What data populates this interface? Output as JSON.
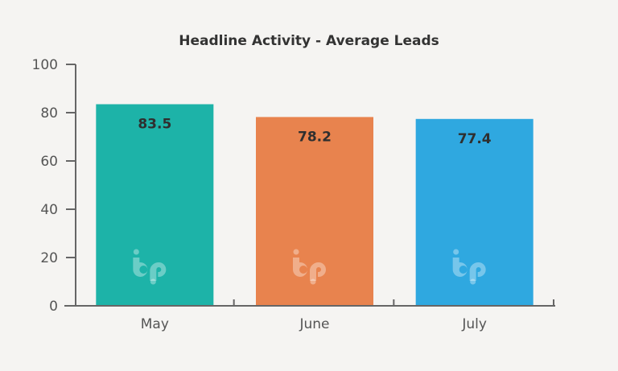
{
  "chart_data": {
    "type": "bar",
    "title": "Headline Activity - Average Leads",
    "xlabel": "",
    "ylabel": "",
    "categories": [
      "May",
      "June",
      "July"
    ],
    "values": [
      83.5,
      78.2,
      77.4
    ],
    "value_labels": [
      "83.5",
      "78.2",
      "77.4"
    ],
    "ylim": [
      0,
      100
    ],
    "yticks": [
      0,
      20,
      40,
      60,
      80,
      100
    ],
    "ytick_labels": [
      "0",
      "20",
      "40",
      "60",
      "80",
      "100"
    ],
    "bar_colors": [
      "#1db3a8",
      "#e8834e",
      "#2fa8e0"
    ],
    "axis_color": "#666666",
    "grid": false,
    "legend": "none",
    "watermark": "bp"
  }
}
